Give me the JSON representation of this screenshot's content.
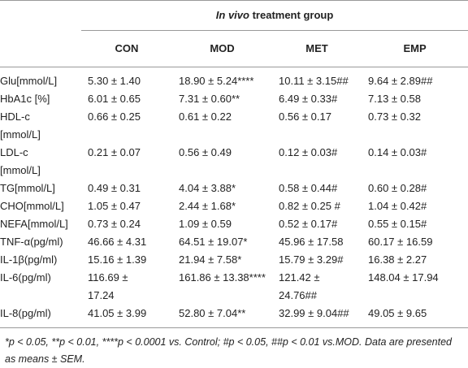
{
  "header": {
    "group_title_italic": "In vivo",
    "group_title_rest": "treatment group"
  },
  "columns": [
    "CON",
    "MOD",
    "MET",
    "EMP"
  ],
  "rows": [
    [
      "Glu[mmol/L]",
      "5.30 ± 1.40",
      "18.90 ± 5.24****",
      "10.11 ± 3.15##",
      "9.64 ± 2.89##"
    ],
    [
      "HbA1c [%]",
      "6.01 ± 0.65",
      "7.31 ± 0.60**",
      "6.49 ± 0.33#",
      "7.13 ± 0.58"
    ],
    [
      "HDL-c\n[mmol/L]",
      "0.66 ± 0.25",
      "0.61 ± 0.22",
      "0.56 ± 0.17",
      "0.73 ± 0.32"
    ],
    [
      "LDL-c\n[mmol/L]",
      "0.21 ± 0.07",
      "0.56 ± 0.49",
      "0.12 ± 0.03#",
      "0.14 ± 0.03#"
    ],
    [
      "TG[mmol/L]",
      "0.49 ± 0.31",
      "4.04 ± 3.88*",
      "0.58 ± 0.44#",
      "0.60 ± 0.28#"
    ],
    [
      "CHO[mmol/L]",
      "1.05 ± 0.47",
      "2.44 ± 1.68*",
      "0.82 ± 0.25 #",
      "1.04 ± 0.42#"
    ],
    [
      "NEFA[mmol/L]",
      "0.73 ± 0.24",
      "1.09 ± 0.59",
      "0.52 ± 0.17#",
      "0.55 ± 0.15#"
    ],
    [
      "TNF-α(pg/ml)",
      "46.66 ± 4.31",
      "64.51 ± 19.07*",
      "45.96 ± 17.58",
      "60.17 ± 16.59"
    ],
    [
      "IL-1β(pg/ml)",
      "15.16 ± 1.39",
      "21.94 ± 7.58*",
      "15.79 ± 3.29#",
      "16.38 ± 2.27"
    ],
    [
      "IL-6(pg/ml)",
      "116.69 ±\n17.24",
      "161.86 ± 13.38****",
      "121.42 ±\n24.76##",
      "148.04 ± 17.94"
    ],
    [
      "IL-8(pg/ml)",
      "41.05 ± 3.99",
      "52.80 ± 7.04**",
      "32.99 ± 9.04##",
      "49.05 ± 9.65"
    ]
  ],
  "footnote": "*p < 0.05, **p < 0.01, ****p < 0.0001 vs. Control; #p < 0.05, ##p < 0.01 vs.MOD. Data are presented as means ± SEM."
}
